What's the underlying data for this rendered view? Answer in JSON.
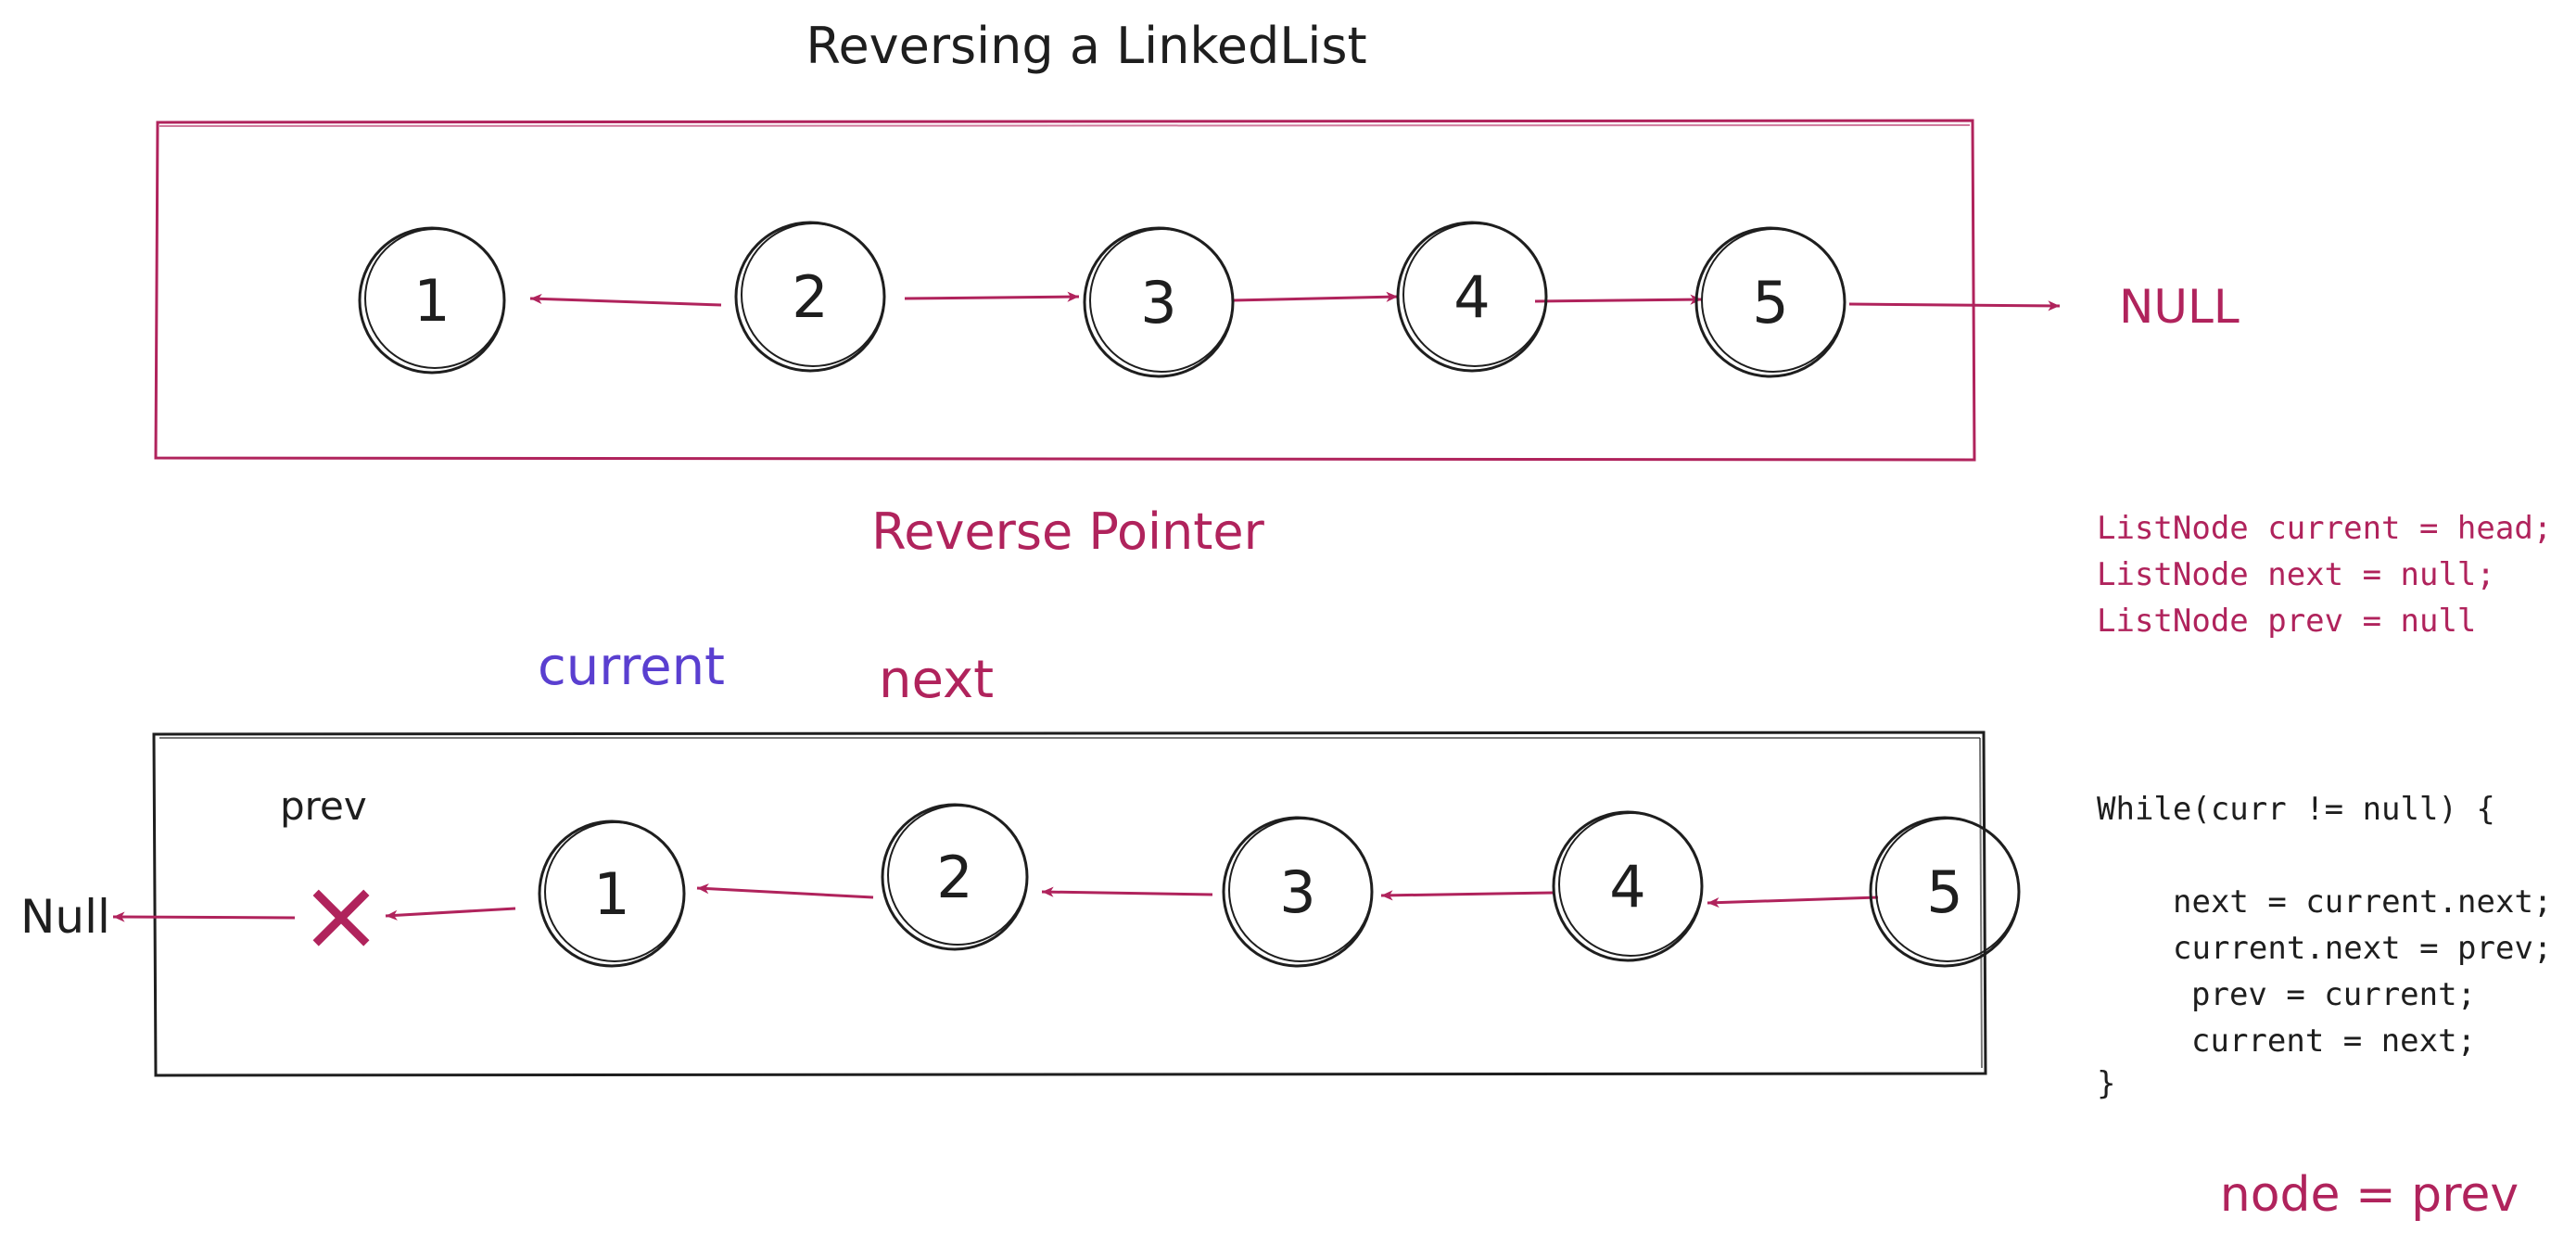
{
  "title": "Reversing a LinkedList",
  "section_label": "Reverse Pointer",
  "colors": {
    "ink": "#1e1e1e",
    "crimson": "#b0235c",
    "purple": "#5a3fd0",
    "top_box_stroke": "#b0235c",
    "bottom_box_stroke": "#1e1e1e"
  },
  "top_list": {
    "nodes": [
      "1",
      "2",
      "3",
      "4",
      "5"
    ],
    "terminal": "NULL"
  },
  "bottom_list": {
    "pointer_labels": {
      "current": "current",
      "next": "next",
      "prev": "prev"
    },
    "null_label": "Null",
    "cross_mark": "×",
    "nodes": [
      "1",
      "2",
      "3",
      "4",
      "5"
    ]
  },
  "init_code": [
    "ListNode current = head;",
    "ListNode next = null;",
    "ListNode prev = null"
  ],
  "loop_code": [
    "While(curr != null) {",
    "next = current.next;",
    "current.next = prev;",
    "prev = current;",
    "current = next;",
    "}"
  ],
  "result": "node = prev"
}
